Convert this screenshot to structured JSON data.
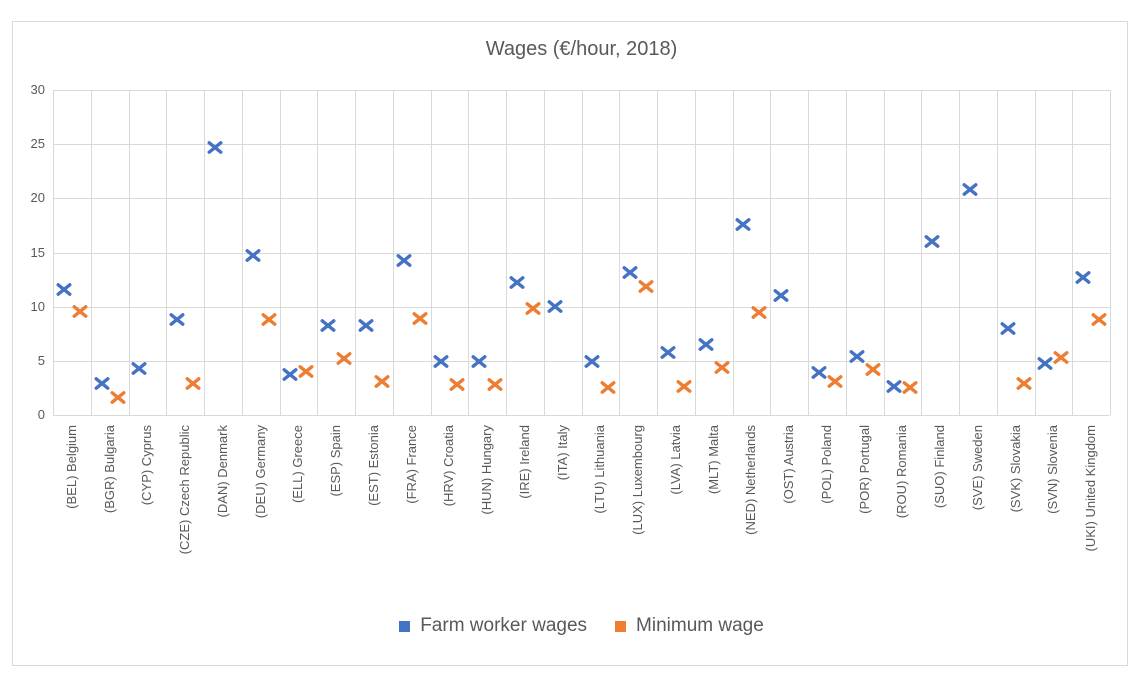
{
  "window": {
    "background": "#ffffff",
    "frame_border_color": "#d9d9d9"
  },
  "chart_data": {
    "type": "scatter",
    "title": "Wages (€/hour, 2018)",
    "marker_shape": "x",
    "categories": [
      "(BEL) Belgium",
      "(BGR) Bulgaria",
      "(CYP) Cyprus",
      "(CZE) Czech Republic",
      "(DAN) Denmark",
      "(DEU) Germany",
      "(ELL) Greece",
      "(ESP) Spain",
      "(EST) Estonia",
      "(FRA) France",
      "(HRV) Croatia",
      "(HUN) Hungary",
      "(IRE) Ireland",
      "(ITA) Italy",
      "(LTU) Lithuania",
      "(LUX) Luxembourg",
      "(LVA) Latvia",
      "(MLT) Malta",
      "(NED) Netherlands",
      "(OST) Austria",
      "(POL) Poland",
      "(POR) Portugal",
      "(ROU) Romania",
      "(SUO) Finland",
      "(SVE) Sweden",
      "(SVK) Slovakia",
      "(SVN) Slovenia",
      "(UKI) United Kingdom"
    ],
    "series": [
      {
        "name": "Farm worker wages",
        "color": "#4472C4",
        "values": [
          11.6,
          2.9,
          4.3,
          8.8,
          24.7,
          14.7,
          3.7,
          8.3,
          8.3,
          14.3,
          4.9,
          4.9,
          12.2,
          10.0,
          4.9,
          13.2,
          5.8,
          6.5,
          17.6,
          11.0,
          3.9,
          5.4,
          2.6,
          16.0,
          20.8,
          8.0,
          4.8,
          12.7
        ]
      },
      {
        "name": "Minimum wage",
        "color": "#ED7D31",
        "values": [
          9.6,
          1.6,
          null,
          2.9,
          null,
          8.8,
          4.0,
          5.2,
          3.1,
          8.9,
          2.8,
          2.8,
          9.8,
          null,
          2.5,
          11.9,
          2.6,
          4.4,
          9.5,
          null,
          3.1,
          4.2,
          2.5,
          null,
          null,
          2.9,
          5.3,
          8.8
        ]
      }
    ],
    "ylim": [
      0,
      30
    ],
    "yticks": [
      0,
      5,
      10,
      15,
      20,
      25,
      30
    ],
    "xlabel": "",
    "ylabel": "",
    "grid": "both",
    "gridline_color": "#d9d9d9",
    "text_color": "#595959",
    "legend_position": "bottom"
  }
}
